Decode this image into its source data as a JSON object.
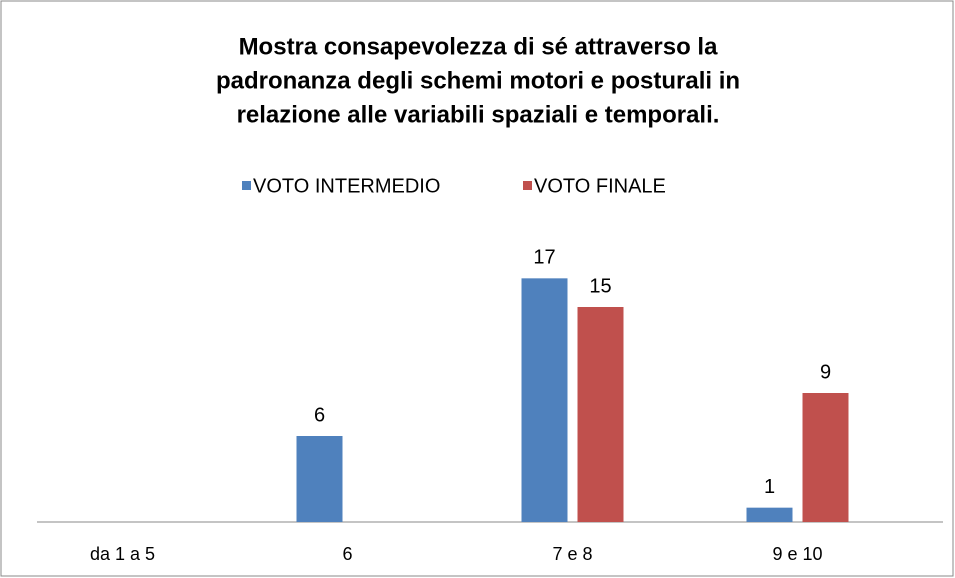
{
  "chart_data": {
    "type": "bar",
    "title": [
      "Mostra consapevolezza di sé attraverso la",
      "padronanza degli schemi motori e posturali in",
      "relazione alle variabili spaziali e temporali."
    ],
    "categories": [
      "da 1 a 5",
      "6",
      "7 e 8",
      "9 e 10"
    ],
    "series": [
      {
        "name": "VOTO INTERMEDIO",
        "color": "#4f81bd",
        "values": [
          null,
          6,
          17,
          1
        ]
      },
      {
        "name": "VOTO FINALE",
        "color": "#c0504d",
        "values": [
          null,
          null,
          15,
          9
        ]
      }
    ],
    "ylim": [
      0,
      18
    ],
    "legend": "top"
  }
}
